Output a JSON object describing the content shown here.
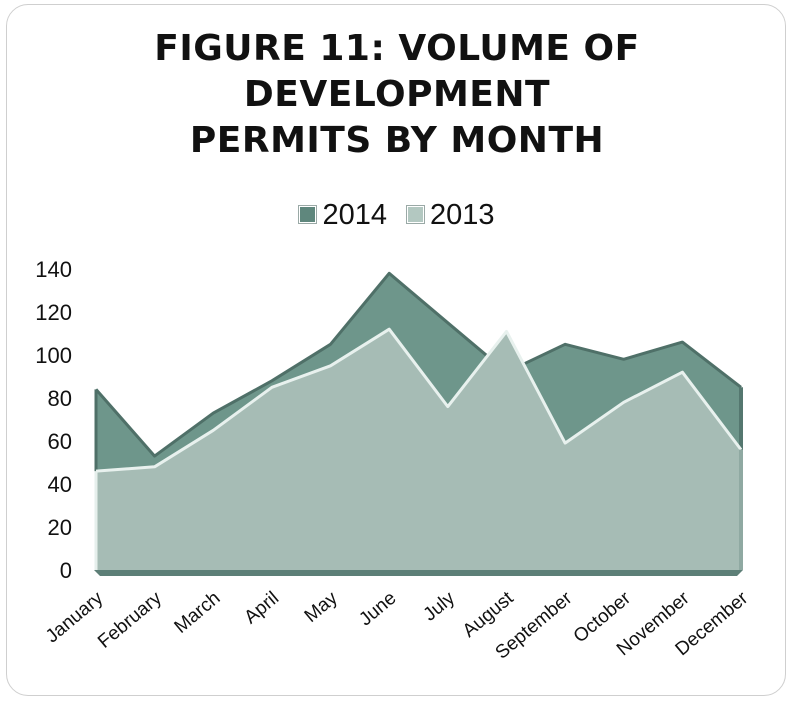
{
  "chart_data": {
    "type": "area",
    "title_lines": [
      "FIGURE 11: VOLUME OF",
      "DEVELOPMENT",
      "PERMITS BY MONTH"
    ],
    "categories": [
      "January",
      "February",
      "March",
      "April",
      "May",
      "June",
      "July",
      "August",
      "September",
      "October",
      "November",
      "December"
    ],
    "series": [
      {
        "name": "2014",
        "color": "#6e968b",
        "values": [
          84,
          53,
          73,
          88,
          105,
          138,
          115,
          92,
          105,
          98,
          106,
          85
        ]
      },
      {
        "name": "2013",
        "color": "#a6bcb5",
        "values": [
          46,
          48,
          65,
          85,
          95,
          112,
          76,
          111,
          59,
          78,
          92,
          56
        ]
      }
    ],
    "ylim": [
      0,
      140
    ],
    "yticks": [
      0,
      20,
      40,
      60,
      80,
      100,
      120,
      140
    ],
    "xlabel": "",
    "ylabel": "",
    "legend_position": "top",
    "grid": false
  }
}
